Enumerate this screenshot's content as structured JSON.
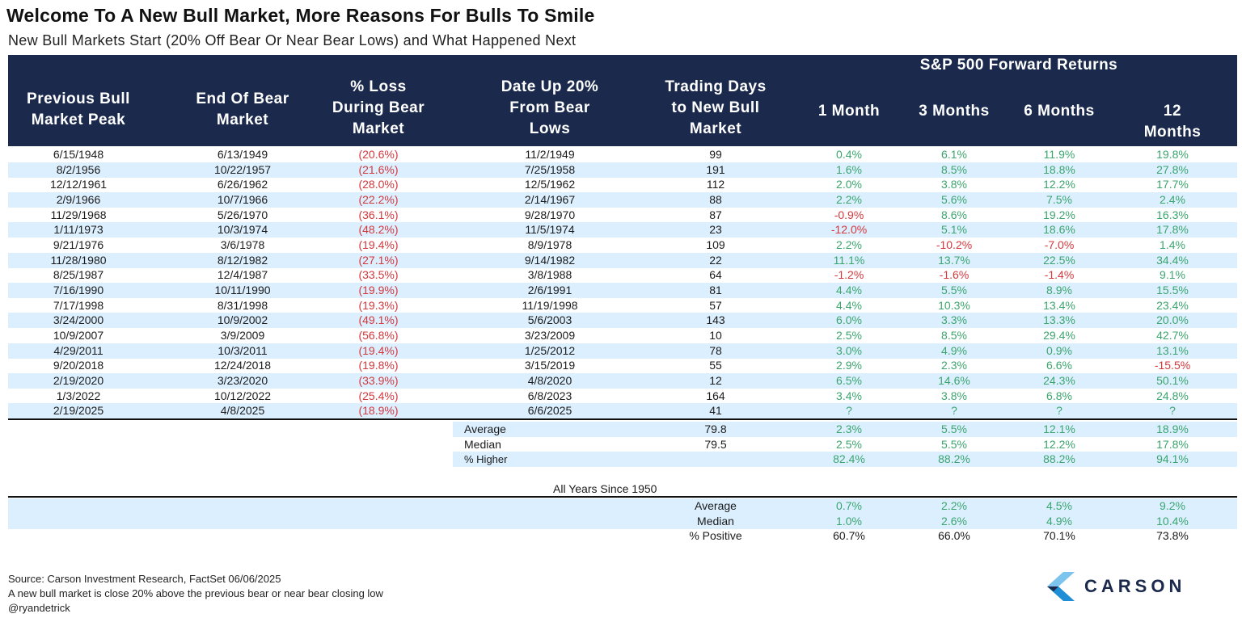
{
  "title": "Welcome To A New Bull Market, More Reasons For Bulls To Smile",
  "subtitle": "New Bull Markets Start (20% Off Bear Or Near Bear Lows) and What Happened Next",
  "chart_data": {
    "type": "table",
    "group_header": "S&P 500 Forward Returns",
    "columns": [
      "Previous Bull\nMarket Peak",
      "End Of Bear\nMarket",
      "% Loss\nDuring Bear\nMarket",
      "Date Up 20%\nFrom Bear\nLows",
      "Trading Days\nto New Bull\nMarket",
      "1 Month",
      "3 Months",
      "6 Months",
      "12 Months"
    ],
    "rows": [
      [
        "6/15/1948",
        "6/13/1949",
        "(20.6%)",
        "11/2/1949",
        "99",
        "0.4%",
        "6.1%",
        "11.9%",
        "19.8%"
      ],
      [
        "8/2/1956",
        "10/22/1957",
        "(21.6%)",
        "7/25/1958",
        "191",
        "1.6%",
        "8.5%",
        "18.8%",
        "27.8%"
      ],
      [
        "12/12/1961",
        "6/26/1962",
        "(28.0%)",
        "12/5/1962",
        "112",
        "2.0%",
        "3.8%",
        "12.2%",
        "17.7%"
      ],
      [
        "2/9/1966",
        "10/7/1966",
        "(22.2%)",
        "2/14/1967",
        "88",
        "2.2%",
        "5.6%",
        "7.5%",
        "2.4%"
      ],
      [
        "11/29/1968",
        "5/26/1970",
        "(36.1%)",
        "9/28/1970",
        "87",
        "-0.9%",
        "8.6%",
        "19.2%",
        "16.3%"
      ],
      [
        "1/11/1973",
        "10/3/1974",
        "(48.2%)",
        "11/5/1974",
        "23",
        "-12.0%",
        "5.1%",
        "18.6%",
        "17.8%"
      ],
      [
        "9/21/1976",
        "3/6/1978",
        "(19.4%)",
        "8/9/1978",
        "109",
        "2.2%",
        "-10.2%",
        "-7.0%",
        "1.4%"
      ],
      [
        "11/28/1980",
        "8/12/1982",
        "(27.1%)",
        "9/14/1982",
        "22",
        "11.1%",
        "13.7%",
        "22.5%",
        "34.4%"
      ],
      [
        "8/25/1987",
        "12/4/1987",
        "(33.5%)",
        "3/8/1988",
        "64",
        "-1.2%",
        "-1.6%",
        "-1.4%",
        "9.1%"
      ],
      [
        "7/16/1990",
        "10/11/1990",
        "(19.9%)",
        "2/6/1991",
        "81",
        "4.4%",
        "5.5%",
        "8.9%",
        "15.5%"
      ],
      [
        "7/17/1998",
        "8/31/1998",
        "(19.3%)",
        "11/19/1998",
        "57",
        "4.4%",
        "10.3%",
        "13.4%",
        "23.4%"
      ],
      [
        "3/24/2000",
        "10/9/2002",
        "(49.1%)",
        "5/6/2003",
        "143",
        "6.0%",
        "3.3%",
        "13.3%",
        "20.0%"
      ],
      [
        "10/9/2007",
        "3/9/2009",
        "(56.8%)",
        "3/23/2009",
        "10",
        "2.5%",
        "8.5%",
        "29.4%",
        "42.7%"
      ],
      [
        "4/29/2011",
        "10/3/2011",
        "(19.4%)",
        "1/25/2012",
        "78",
        "3.0%",
        "4.9%",
        "0.9%",
        "13.1%"
      ],
      [
        "9/20/2018",
        "12/24/2018",
        "(19.8%)",
        "3/15/2019",
        "55",
        "2.9%",
        "2.3%",
        "6.6%",
        "-15.5%"
      ],
      [
        "2/19/2020",
        "3/23/2020",
        "(33.9%)",
        "4/8/2020",
        "12",
        "6.5%",
        "14.6%",
        "24.3%",
        "50.1%"
      ],
      [
        "1/3/2022",
        "10/12/2022",
        "(25.4%)",
        "6/8/2023",
        "164",
        "3.4%",
        "3.8%",
        "6.8%",
        "24.8%"
      ],
      [
        "2/19/2025",
        "4/8/2025",
        "(18.9%)",
        "6/6/2025",
        "41",
        "?",
        "?",
        "?",
        "?"
      ]
    ],
    "summary": [
      {
        "label": "Average",
        "days": "79.8",
        "values": [
          "2.3%",
          "5.5%",
          "12.1%",
          "18.9%"
        ]
      },
      {
        "label": "Median",
        "days": "79.5",
        "values": [
          "2.5%",
          "5.5%",
          "12.2%",
          "17.8%"
        ]
      },
      {
        "label": "% Higher",
        "days": "",
        "values": [
          "82.4%",
          "88.2%",
          "88.2%",
          "94.1%"
        ]
      }
    ],
    "all_years_title": "All Years Since 1950",
    "all_years": [
      {
        "label": "Average",
        "values": [
          "0.7%",
          "2.2%",
          "4.5%",
          "9.2%"
        ]
      },
      {
        "label": "Median",
        "values": [
          "1.0%",
          "2.6%",
          "4.9%",
          "10.4%"
        ]
      },
      {
        "label": "% Positive",
        "values": [
          "60.7%",
          "66.0%",
          "70.1%",
          "73.8%"
        ]
      }
    ]
  },
  "footer": {
    "source": "Source: Carson Investment Research, FactSet 06/06/2025",
    "note": "A new bull market is close 20% above the previous bear or near bear closing low",
    "handle": "@ryandetrick"
  },
  "logo": {
    "text": "CARSON"
  },
  "colors": {
    "header": "#1b2a4c",
    "positive": "#3ba56e",
    "negative": "#d4373c",
    "stripe": "#dcefff"
  }
}
